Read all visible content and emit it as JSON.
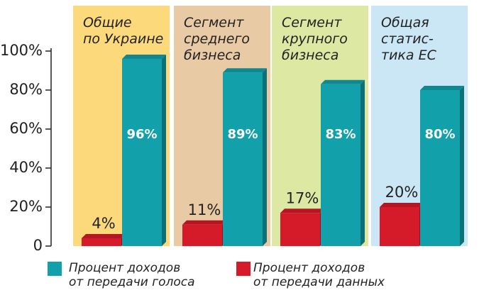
{
  "chart_data": {
    "type": "bar",
    "categories": [
      "Общие\nпо Украине",
      "Сегмент\nсреднего\nбизнеса",
      "Сегмент\nкрупного\nбизнеса",
      "Общая\nстатис-\nтика ЕС"
    ],
    "panel_colors": [
      "#fcd97b",
      "#e8caa5",
      "#dde8a2",
      "#cbe7f6"
    ],
    "series": [
      {
        "name": "Процент доходов\nот передачи данных",
        "color": "#d51a2a",
        "values": [
          4,
          11,
          17,
          20
        ],
        "value_labels": [
          "4%",
          "11%",
          "17%",
          "20%"
        ]
      },
      {
        "name": "Процент доходов\nот передачи голоса",
        "color": "#12a0aa",
        "values": [
          96,
          89,
          83,
          80
        ],
        "value_labels": [
          "96%",
          "89%",
          "83%",
          "80%"
        ]
      }
    ],
    "ylim": [
      0,
      100
    ],
    "yticks": [
      {
        "value": 0,
        "label": "0"
      },
      {
        "value": 20,
        "label": "20%"
      },
      {
        "value": 40,
        "label": "40%"
      },
      {
        "value": 60,
        "label": "60%"
      },
      {
        "value": 80,
        "label": "80%"
      },
      {
        "value": 100,
        "label": "100%"
      }
    ]
  }
}
